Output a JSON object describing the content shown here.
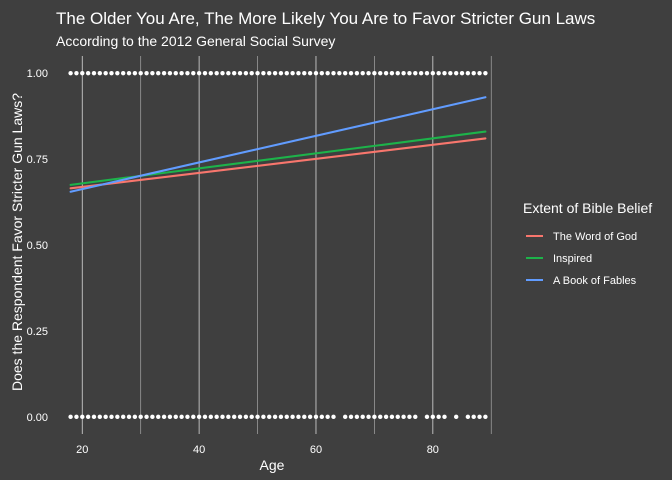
{
  "chart_data": {
    "type": "line",
    "title": "The Older You Are, The More Likely You Are to Favor Stricter Gun Laws",
    "subtitle": "According to the 2012 General Social Survey",
    "xlabel": "Age",
    "ylabel": "Does the Respondent Favor Stricter Gun Laws?",
    "xlim": [
      15.5,
      91.5
    ],
    "ylim": [
      -0.05,
      1.05
    ],
    "x_ticks": [
      20,
      40,
      60,
      80
    ],
    "y_ticks": [
      0,
      0.25,
      0.5,
      0.75,
      1
    ],
    "x_tick_labels": [
      "20",
      "40",
      "60",
      "80"
    ],
    "y_tick_labels": [
      "0.00",
      "0.25",
      "0.50",
      "0.75",
      "1.00"
    ],
    "grid": true,
    "legend": {
      "title": "Extent of Bible Belief",
      "position": "right"
    },
    "series": [
      {
        "name": "The Word of God",
        "color": "#f8766d",
        "x": [
          18,
          89
        ],
        "y": [
          0.665,
          0.81
        ]
      },
      {
        "name": "Inspired",
        "color": "#1db34a",
        "x": [
          18,
          89
        ],
        "y": [
          0.675,
          0.83
        ]
      },
      {
        "name": "A Book of Fables",
        "color": "#619cff",
        "x": [
          18,
          89
        ],
        "y": [
          0.655,
          0.93
        ]
      }
    ],
    "points": {
      "color": "#ffffff",
      "y1_x": [
        18,
        19,
        20,
        21,
        22,
        23,
        24,
        25,
        26,
        27,
        28,
        29,
        30,
        31,
        32,
        33,
        34,
        35,
        36,
        37,
        38,
        39,
        40,
        41,
        42,
        43,
        44,
        45,
        46,
        47,
        48,
        49,
        50,
        51,
        52,
        53,
        54,
        55,
        56,
        57,
        58,
        59,
        60,
        61,
        62,
        63,
        64,
        65,
        66,
        67,
        68,
        69,
        70,
        71,
        72,
        73,
        74,
        75,
        76,
        77,
        78,
        79,
        80,
        81,
        82,
        83,
        84,
        85,
        86,
        87,
        88,
        89
      ],
      "y0_x": [
        18,
        19,
        20,
        21,
        22,
        23,
        24,
        25,
        26,
        27,
        28,
        29,
        30,
        31,
        32,
        33,
        34,
        35,
        36,
        37,
        38,
        39,
        40,
        41,
        42,
        43,
        44,
        45,
        46,
        47,
        48,
        49,
        50,
        51,
        52,
        53,
        54,
        55,
        56,
        57,
        58,
        59,
        60,
        61,
        62,
        63,
        65,
        66,
        67,
        68,
        69,
        70,
        71,
        72,
        73,
        74,
        75,
        76,
        77,
        79,
        80,
        81,
        82,
        84,
        86,
        87,
        88,
        89
      ]
    }
  }
}
